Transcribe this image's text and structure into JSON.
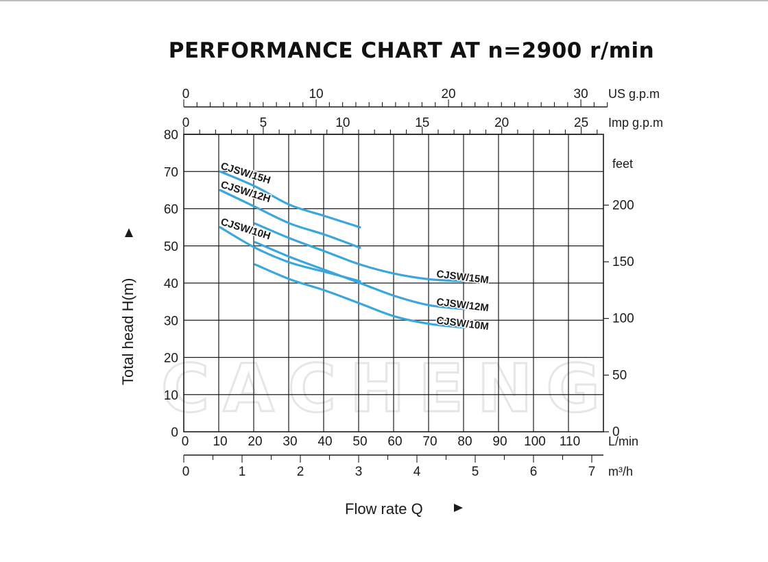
{
  "title": "PERFORMANCE CHART AT n=2900 r/min",
  "watermark": "CACHENG",
  "chart_data": {
    "type": "line",
    "title": "PERFORMANCE CHART AT n=2900 r/min",
    "xlabel": "Flow rate  Q",
    "ylabel": "Total  head H(m)",
    "x_unit": "L/min",
    "xlim": [
      0,
      120
    ],
    "ylim": [
      0,
      80
    ],
    "x_ticks": [
      0,
      10,
      20,
      30,
      40,
      50,
      60,
      70,
      80,
      90,
      100,
      110
    ],
    "y_ticks": [
      0,
      10,
      20,
      30,
      40,
      50,
      60,
      70,
      80
    ],
    "grid": true,
    "secondary_axes": {
      "us_gpm": {
        "unit": "US g.p.m",
        "ticks": [
          0,
          10,
          20,
          30
        ]
      },
      "imp_gpm": {
        "unit": "Imp g.p.m",
        "ticks": [
          0,
          5,
          10,
          15,
          20,
          25
        ]
      },
      "m3h": {
        "unit": "m³/h",
        "ticks": [
          0,
          1,
          2,
          3,
          4,
          5,
          6,
          7
        ]
      },
      "feet": {
        "unit": "feet",
        "ticks": [
          0,
          50,
          100,
          150,
          200
        ]
      }
    },
    "series_color": "#3aa6de",
    "series": [
      {
        "name": "CJSW/15H",
        "x": [
          10,
          20,
          30,
          40,
          50
        ],
        "y": [
          70,
          66,
          61,
          58,
          55
        ]
      },
      {
        "name": "CJSW/12H",
        "x": [
          10,
          20,
          30,
          40,
          50
        ],
        "y": [
          65,
          60.5,
          56,
          53,
          49.5
        ]
      },
      {
        "name": "CJSW/10H",
        "x": [
          10,
          20,
          30,
          40,
          50
        ],
        "y": [
          55,
          49.5,
          45.5,
          43,
          40.5
        ]
      },
      {
        "name": "CJSW/15M",
        "x": [
          20,
          30,
          40,
          50,
          60,
          70,
          80
        ],
        "y": [
          56,
          52,
          48.5,
          45,
          42.5,
          41,
          40.5
        ]
      },
      {
        "name": "CJSW/12M",
        "x": [
          20,
          30,
          40,
          50,
          60,
          70,
          80
        ],
        "y": [
          51,
          47,
          43.5,
          40,
          36.5,
          34,
          33
        ]
      },
      {
        "name": "CJSW/10M",
        "x": [
          20,
          30,
          40,
          50,
          60,
          70,
          80
        ],
        "y": [
          45,
          41,
          38,
          34.5,
          31,
          29,
          28
        ]
      }
    ]
  }
}
